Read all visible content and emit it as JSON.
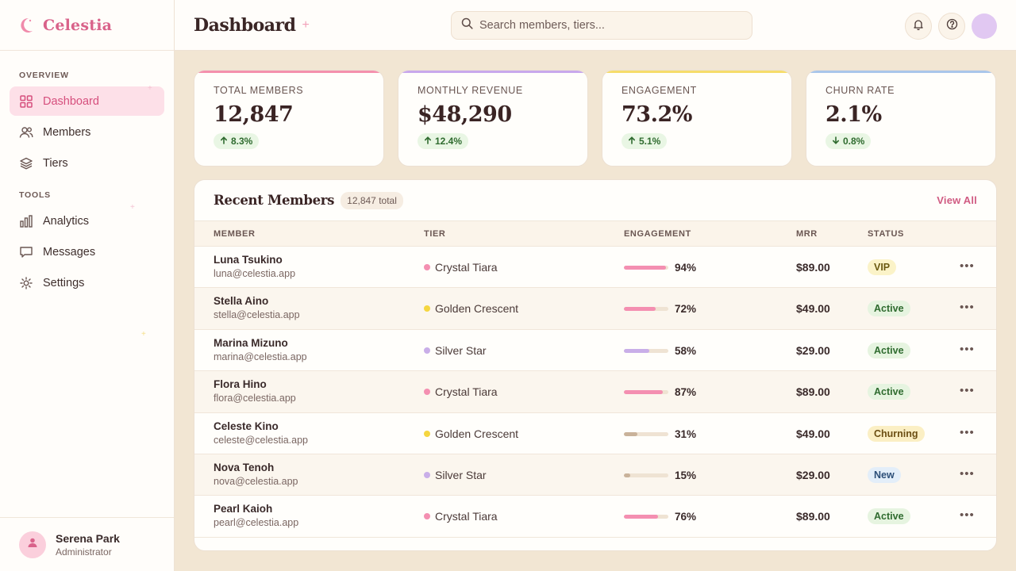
{
  "brand": {
    "name": "Celestia"
  },
  "sidebar": {
    "sections": {
      "overview": "OVERVIEW",
      "tools": "TOOLS"
    },
    "items": [
      {
        "label": "Dashboard",
        "icon": "grid-icon"
      },
      {
        "label": "Members",
        "icon": "users-icon"
      },
      {
        "label": "Tiers",
        "icon": "layers-icon"
      },
      {
        "label": "Analytics",
        "icon": "bar-chart-icon"
      },
      {
        "label": "Messages",
        "icon": "message-icon"
      },
      {
        "label": "Settings",
        "icon": "sun-gear-icon"
      }
    ],
    "active": "Dashboard",
    "user": {
      "name": "Serena Park",
      "role": "Administrator"
    }
  },
  "header": {
    "title": "Dashboard",
    "search_placeholder": "Search members, tiers..."
  },
  "stats": [
    {
      "label": "TOTAL MEMBERS",
      "value": "12,847",
      "delta": "8.3%",
      "direction": "up",
      "accent": "#f490ad"
    },
    {
      "label": "MONTHLY REVENUE",
      "value": "$48,290",
      "delta": "12.4%",
      "direction": "up",
      "accent": "#c8a8ec"
    },
    {
      "label": "ENGAGEMENT",
      "value": "73.2%",
      "delta": "5.1%",
      "direction": "up",
      "accent": "#f6dc6a"
    },
    {
      "label": "CHURN RATE",
      "value": "2.1%",
      "delta": "0.8%",
      "direction": "down",
      "accent": "#a9c6ea"
    }
  ],
  "table": {
    "title": "Recent Members",
    "count": "12,847 total",
    "view_all": "View All",
    "columns": [
      "MEMBER",
      "TIER",
      "ENGAGEMENT",
      "MRR",
      "STATUS"
    ],
    "rows": [
      {
        "name": "Luna Tsukino",
        "email": "luna@celestia.app",
        "tier": "Crystal Tiara",
        "tier_color": "#f48fb1",
        "engagement": "94%",
        "level": 0.94,
        "bar_color": "#f48fb1",
        "mrr": "$89.00",
        "status": "VIP",
        "status_bg": "#fbf3c8",
        "status_fg": "#6b5a12"
      },
      {
        "name": "Stella Aino",
        "email": "stella@celestia.app",
        "tier": "Golden Crescent",
        "tier_color": "#f5d640",
        "engagement": "72%",
        "level": 0.72,
        "bar_color": "#f48fb1",
        "mrr": "$49.00",
        "status": "Active",
        "status_bg": "#e6f4e0",
        "status_fg": "#2f6b2f"
      },
      {
        "name": "Marina Mizuno",
        "email": "marina@celestia.app",
        "tier": "Silver Star",
        "tier_color": "#c9aee8",
        "engagement": "58%",
        "level": 0.58,
        "bar_color": "#c9aee8",
        "mrr": "$29.00",
        "status": "Active",
        "status_bg": "#e6f4e0",
        "status_fg": "#2f6b2f"
      },
      {
        "name": "Flora Hino",
        "email": "flora@celestia.app",
        "tier": "Crystal Tiara",
        "tier_color": "#f48fb1",
        "engagement": "87%",
        "level": 0.87,
        "bar_color": "#f48fb1",
        "mrr": "$89.00",
        "status": "Active",
        "status_bg": "#e6f4e0",
        "status_fg": "#2f6b2f"
      },
      {
        "name": "Celeste Kino",
        "email": "celeste@celestia.app",
        "tier": "Golden Crescent",
        "tier_color": "#f5d640",
        "engagement": "31%",
        "level": 0.31,
        "bar_color": "#c9b29a",
        "mrr": "$49.00",
        "status": "Churning",
        "status_bg": "#fbefc4",
        "status_fg": "#6b4e12"
      },
      {
        "name": "Nova Tenoh",
        "email": "nova@celestia.app",
        "tier": "Silver Star",
        "tier_color": "#c9aee8",
        "engagement": "15%",
        "level": 0.15,
        "bar_color": "#c9b29a",
        "mrr": "$29.00",
        "status": "New",
        "status_bg": "#e3eef9",
        "status_fg": "#2d4f78"
      },
      {
        "name": "Pearl Kaioh",
        "email": "pearl@celestia.app",
        "tier": "Crystal Tiara",
        "tier_color": "#f48fb1",
        "engagement": "76%",
        "level": 0.76,
        "bar_color": "#f48fb1",
        "mrr": "$89.00",
        "status": "Active",
        "status_bg": "#e6f4e0",
        "status_fg": "#2f6b2f"
      }
    ]
  }
}
